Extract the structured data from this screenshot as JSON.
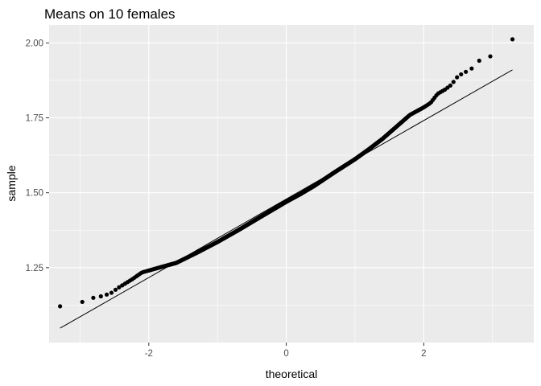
{
  "chart_data": {
    "type": "scatter",
    "title": "Means on 10 females",
    "xlabel": "theoretical",
    "ylabel": "sample",
    "xlim": [
      -3.45,
      3.6
    ],
    "ylim": [
      1.0,
      2.06
    ],
    "x_ticks": [
      -2,
      0,
      2
    ],
    "x_tick_labels": [
      "-2",
      "0",
      "2"
    ],
    "y_ticks": [
      1.25,
      1.5,
      1.75,
      2.0
    ],
    "y_tick_labels": [
      "1.25",
      "1.50",
      "1.75",
      "2.00"
    ],
    "grid": true,
    "legend": "none",
    "reference_line": {
      "x": [
        -3.29,
        3.29
      ],
      "y": [
        1.048,
        1.91
      ]
    },
    "n_points": 1000,
    "quantile_anchors": [
      [
        -3.29,
        1.121
      ],
      [
        -2.96,
        1.136
      ],
      [
        -2.8,
        1.15
      ],
      [
        -2.68,
        1.155
      ],
      [
        -2.55,
        1.165
      ],
      [
        -2.45,
        1.182
      ],
      [
        -2.35,
        1.196
      ],
      [
        -2.25,
        1.21
      ],
      [
        -2.1,
        1.234
      ],
      [
        -1.9,
        1.247
      ],
      [
        -1.6,
        1.266
      ],
      [
        -1.3,
        1.3
      ],
      [
        -1.0,
        1.336
      ],
      [
        -0.7,
        1.375
      ],
      [
        -0.4,
        1.416
      ],
      [
        0.0,
        1.47
      ],
      [
        0.2,
        1.495
      ],
      [
        0.4,
        1.522
      ],
      [
        0.7,
        1.568
      ],
      [
        1.0,
        1.612
      ],
      [
        1.2,
        1.645
      ],
      [
        1.4,
        1.68
      ],
      [
        1.6,
        1.72
      ],
      [
        1.8,
        1.76
      ],
      [
        2.0,
        1.785
      ],
      [
        2.1,
        1.8
      ],
      [
        2.2,
        1.83
      ],
      [
        2.3,
        1.843
      ],
      [
        2.4,
        1.86
      ],
      [
        2.5,
        1.89
      ],
      [
        2.6,
        1.902
      ],
      [
        2.7,
        1.915
      ],
      [
        2.8,
        1.94
      ],
      [
        2.95,
        1.952
      ],
      [
        3.29,
        2.012
      ]
    ],
    "color": "#000000",
    "panel_bg": "#ebebeb",
    "grid_color": "#ffffff"
  }
}
